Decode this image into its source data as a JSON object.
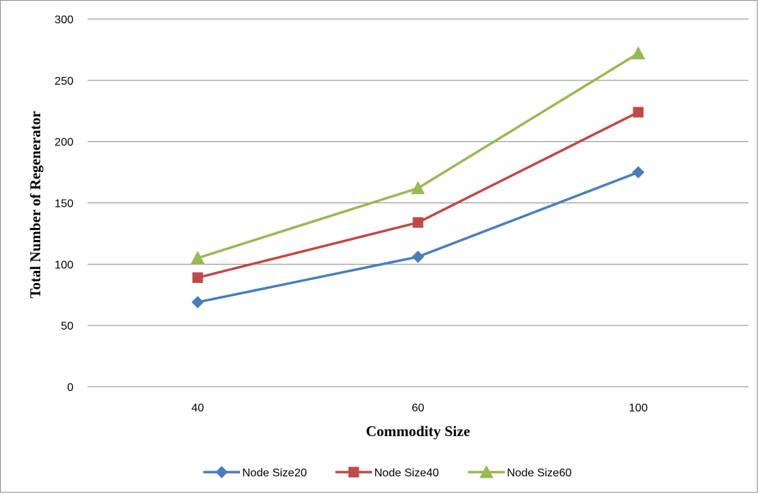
{
  "chart_data": {
    "type": "line",
    "categories": [
      "40",
      "60",
      "100"
    ],
    "series": [
      {
        "name": "Node Size20",
        "values": [
          69,
          106,
          175
        ],
        "color": "#4a7ebb",
        "marker": "diamond"
      },
      {
        "name": "Node Size40",
        "values": [
          89,
          134,
          224
        ],
        "color": "#be4b48",
        "marker": "square"
      },
      {
        "name": "Node Size60",
        "values": [
          105,
          162,
          272
        ],
        "color": "#98b954",
        "marker": "triangle"
      }
    ],
    "xlabel": "Commodity Size",
    "ylabel": "Total Number of Regenerator",
    "ylim": [
      0,
      300
    ],
    "yticks": [
      0,
      50,
      100,
      150,
      200,
      250,
      300
    ],
    "grid": true,
    "legend_position": "bottom"
  }
}
